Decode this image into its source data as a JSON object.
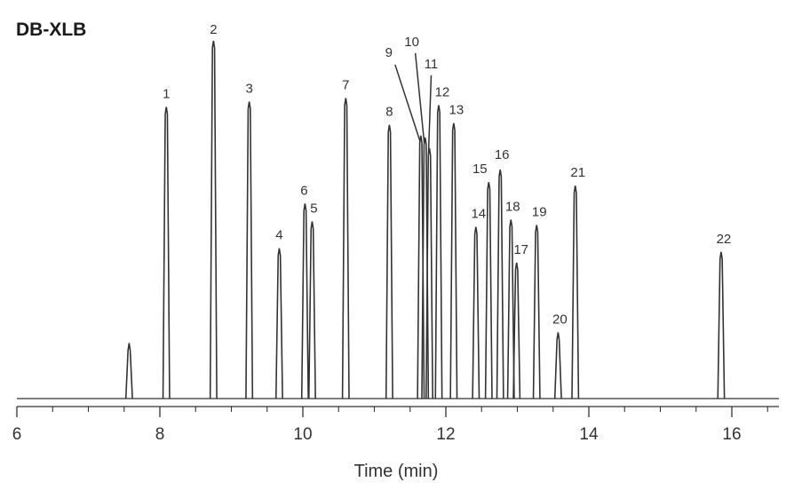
{
  "chart_data": {
    "type": "line",
    "title": "DB-XLB",
    "xlabel": "Time (min)",
    "ylabel": "",
    "xlim": [
      6,
      16.7
    ],
    "ylim": [
      0,
      1.0
    ],
    "xticks": [
      6,
      8,
      10,
      12,
      14,
      16
    ],
    "xtick_labels": [
      "6",
      "8",
      "10",
      "12",
      "14",
      "16"
    ],
    "grid": false,
    "legend": "none",
    "baseline": 0.0,
    "peaks": [
      {
        "label": "",
        "x": 7.57,
        "height": 0.155
      },
      {
        "label": "1",
        "x": 8.09,
        "height": 0.815
      },
      {
        "label": "2",
        "x": 8.75,
        "height": 1.0
      },
      {
        "label": "3",
        "x": 9.25,
        "height": 0.83
      },
      {
        "label": "4",
        "x": 9.67,
        "height": 0.42
      },
      {
        "label": "6",
        "x": 10.03,
        "height": 0.545
      },
      {
        "label": "5",
        "x": 10.13,
        "height": 0.495
      },
      {
        "label": "7",
        "x": 10.6,
        "height": 0.84
      },
      {
        "label": "8",
        "x": 11.21,
        "height": 0.765
      },
      {
        "label": "9",
        "x": 11.65,
        "height": 0.735
      },
      {
        "label": "10",
        "x": 11.71,
        "height": 0.73
      },
      {
        "label": "11",
        "x": 11.77,
        "height": 0.7
      },
      {
        "label": "12",
        "x": 11.9,
        "height": 0.82
      },
      {
        "label": "13",
        "x": 12.11,
        "height": 0.77
      },
      {
        "label": "14",
        "x": 12.42,
        "height": 0.48
      },
      {
        "label": "15",
        "x": 12.6,
        "height": 0.605
      },
      {
        "label": "16",
        "x": 12.76,
        "height": 0.64
      },
      {
        "label": "18",
        "x": 12.91,
        "height": 0.5
      },
      {
        "label": "17",
        "x": 12.99,
        "height": 0.38
      },
      {
        "label": "19",
        "x": 13.27,
        "height": 0.485
      },
      {
        "label": "20",
        "x": 13.57,
        "height": 0.185
      },
      {
        "label": "21",
        "x": 13.81,
        "height": 0.595
      },
      {
        "label": "22",
        "x": 15.85,
        "height": 0.41
      }
    ],
    "colors": {
      "trace": "#333333",
      "axis": "#333333",
      "text": "#333333"
    }
  }
}
